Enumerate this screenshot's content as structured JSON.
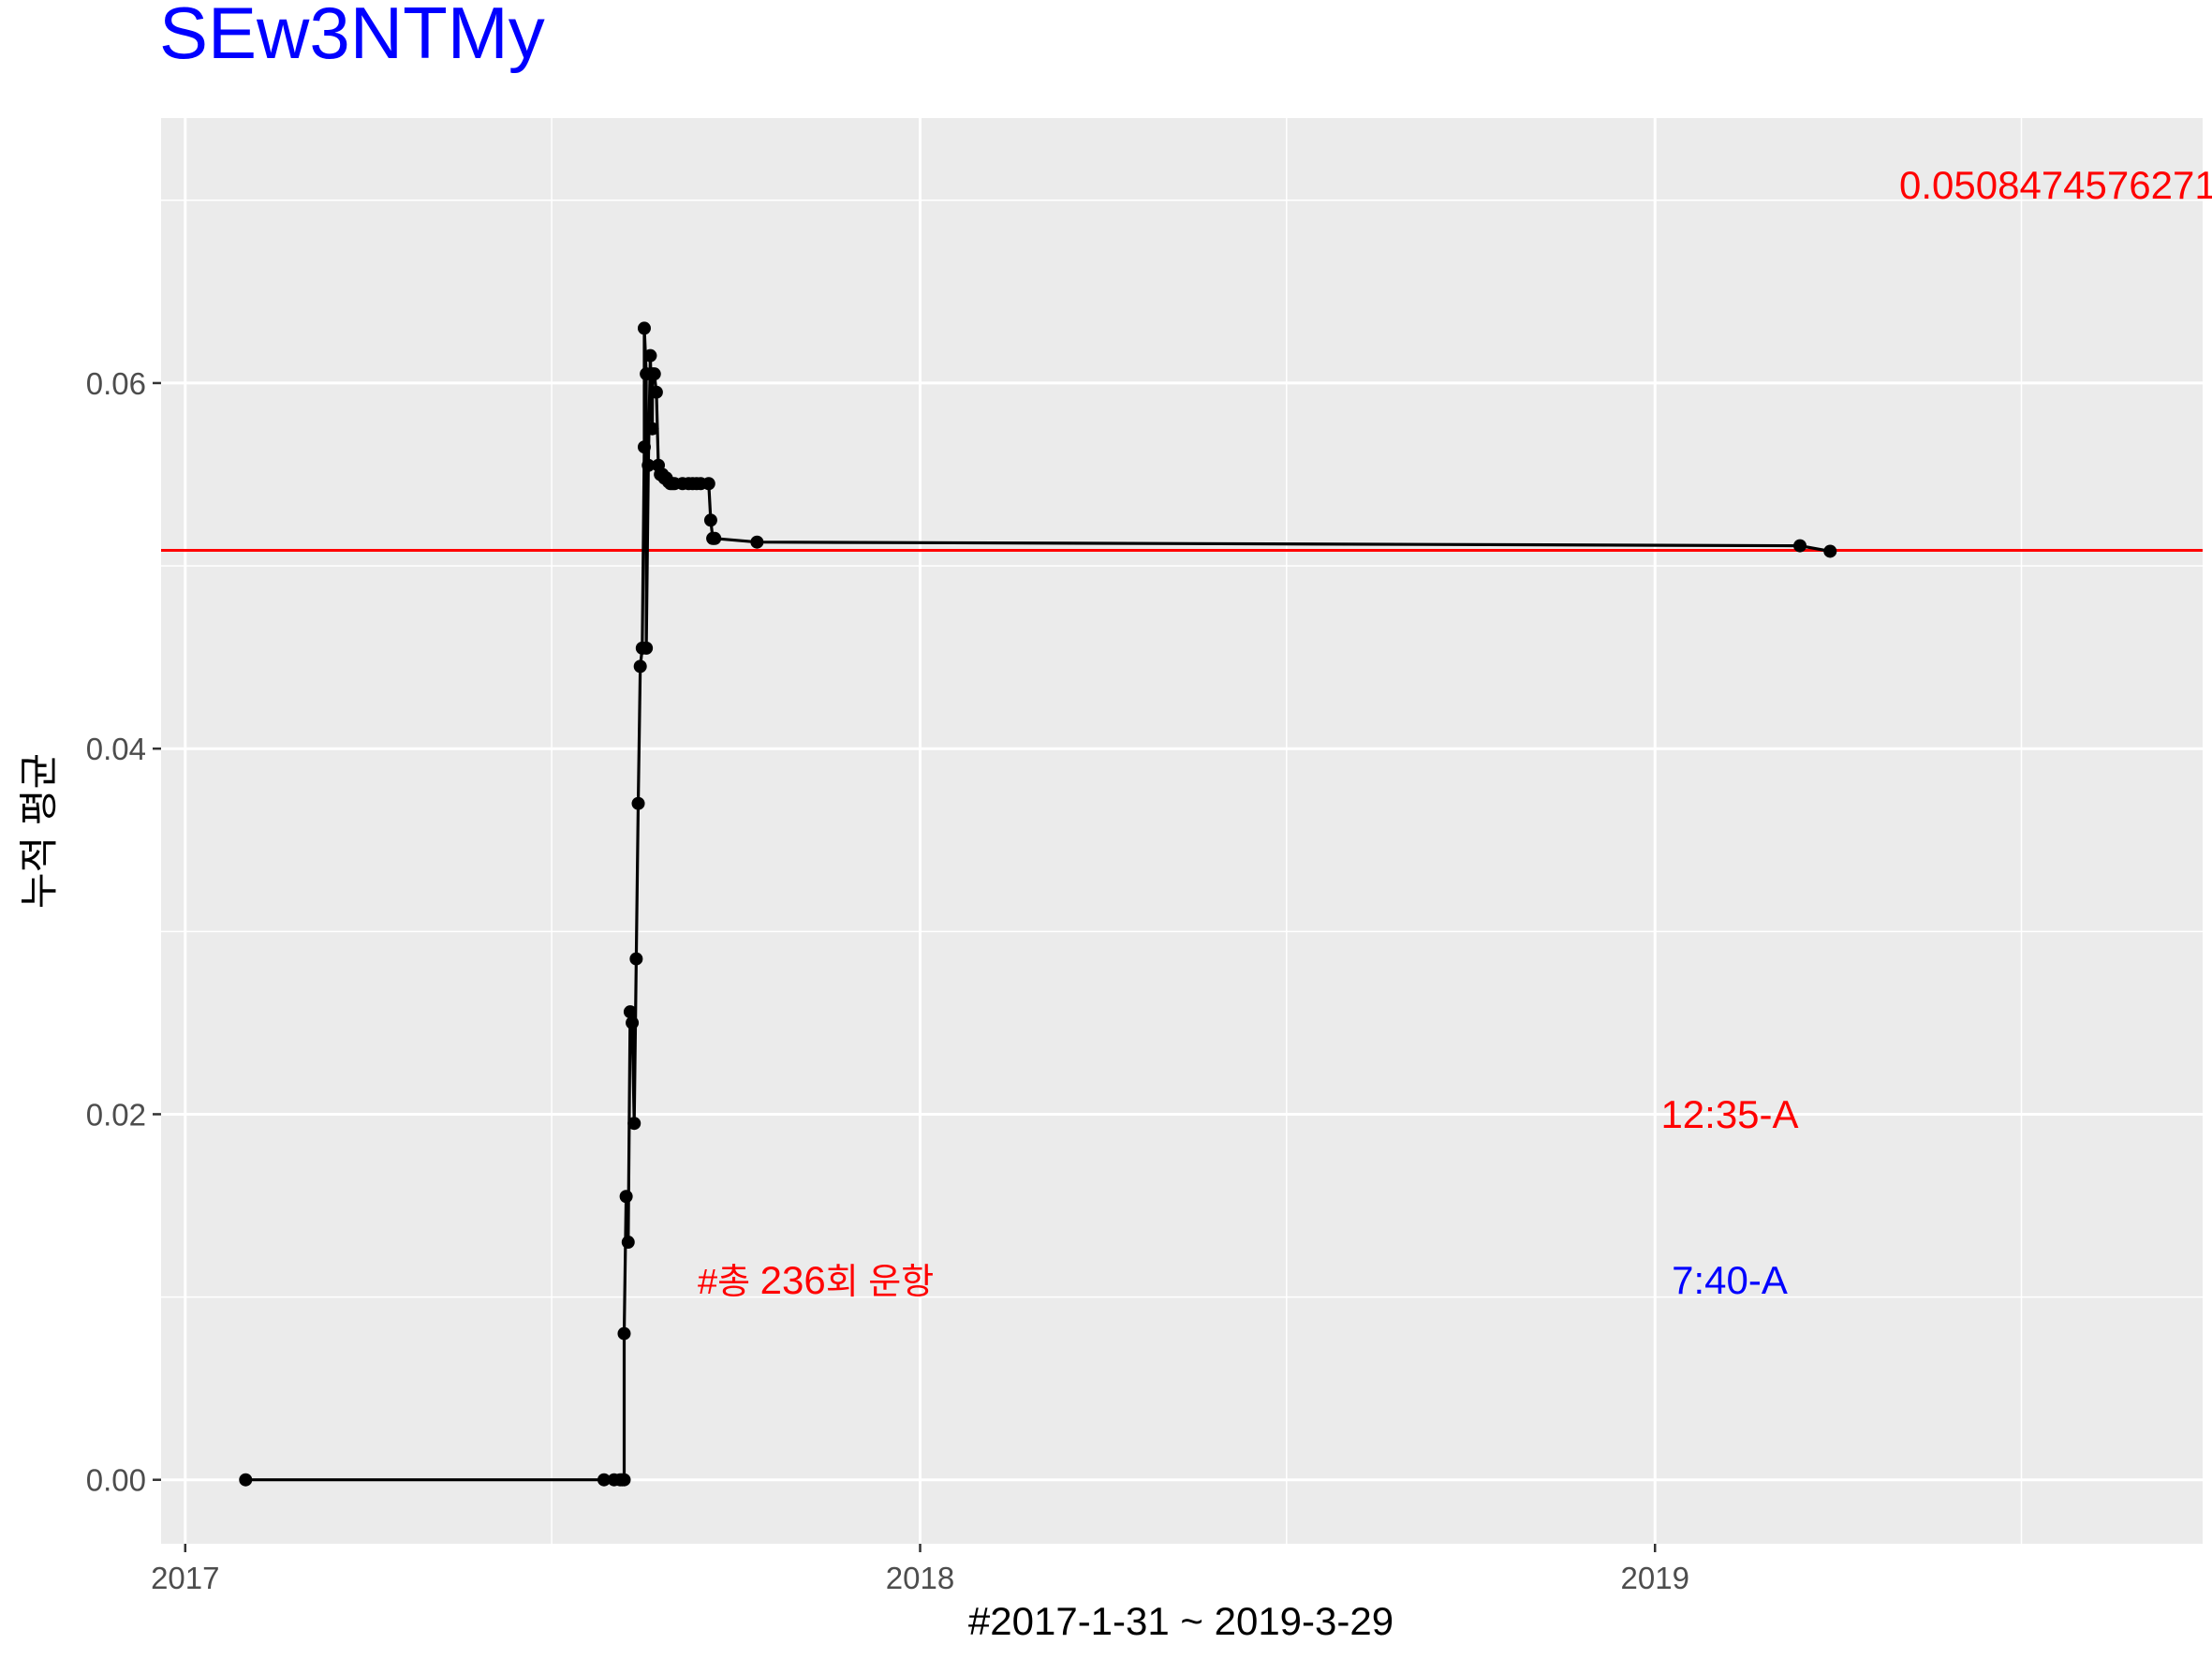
{
  "chart_data": {
    "type": "line",
    "title": "SEw3NTMy",
    "xlabel": "#2017-1-31 ~ 2019-3-29",
    "ylabel": "누적 평균",
    "x_ticks": [
      "2017",
      "2018",
      "2019"
    ],
    "y_ticks": [
      "0.00",
      "0.02",
      "0.04",
      "0.06"
    ],
    "xlim": [
      "2016-12-20",
      "2019-09-30"
    ],
    "ylim": [
      -0.0035,
      0.0745
    ],
    "grid": true,
    "hline": 0.0508474576271,
    "series": [
      {
        "x": [
          "2017-01-31",
          "2017-07-28",
          "2017-08-02",
          "2017-08-05",
          "2017-08-06",
          "2017-08-07",
          "2017-08-07",
          "2017-08-08",
          "2017-08-09",
          "2017-08-10",
          "2017-08-11",
          "2017-08-12",
          "2017-08-13",
          "2017-08-14",
          "2017-08-15",
          "2017-08-16",
          "2017-08-17",
          "2017-08-17",
          "2017-08-18",
          "2017-08-18",
          "2017-08-19",
          "2017-08-20",
          "2017-08-21",
          "2017-08-21",
          "2017-08-22",
          "2017-08-23",
          "2017-08-24",
          "2017-08-25",
          "2017-08-26",
          "2017-08-27",
          "2017-08-28",
          "2017-08-29",
          "2017-08-30",
          "2017-08-31",
          "2017-09-01",
          "2017-09-05",
          "2017-09-08",
          "2017-09-10",
          "2017-09-12",
          "2017-09-14",
          "2017-09-18",
          "2017-09-19",
          "2017-09-20",
          "2017-09-21",
          "2017-10-12",
          "2019-03-14",
          "2019-03-29"
        ],
        "values": [
          0.0,
          0.0,
          0.0,
          0.0,
          0.0,
          0.0,
          0.008,
          0.0155,
          0.013,
          0.0256,
          0.025,
          0.0195,
          0.0285,
          0.037,
          0.0445,
          0.0455,
          0.0565,
          0.063,
          0.0605,
          0.0455,
          0.0555,
          0.0615,
          0.0575,
          0.0605,
          0.0605,
          0.0595,
          0.0555,
          0.055,
          0.055,
          0.0548,
          0.0548,
          0.0546,
          0.0545,
          0.0545,
          0.0545,
          0.0545,
          0.0545,
          0.0545,
          0.0545,
          0.0545,
          0.0545,
          0.0525,
          0.0515,
          0.0515,
          0.0513,
          0.0511,
          0.0508
        ]
      }
    ],
    "annotations": {
      "hline_label": "0.0508474576271",
      "total_prefix": "#총 ",
      "total_count": "236",
      "total_suffix": "회 운항",
      "time_red": "12:35-A",
      "time_blue": "7:40-A"
    },
    "colors": {
      "title": "#0000ff",
      "panel": "#ebebeb",
      "grid": "#ffffff",
      "line": "#000000",
      "hline": "#ff0000",
      "annot_red": "#ff0000",
      "annot_blue": "#0000ff"
    }
  }
}
